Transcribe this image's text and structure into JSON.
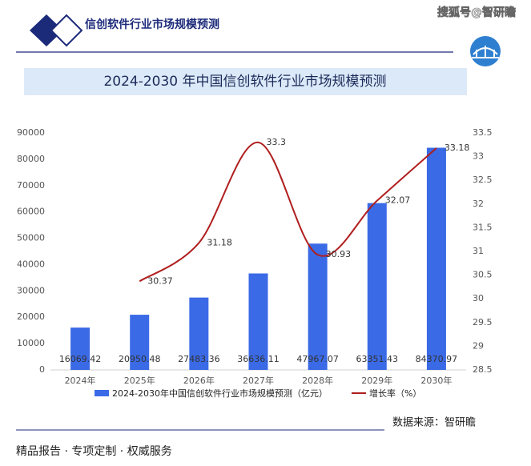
{
  "header": {
    "title": "信创软件行业市场规模预测",
    "watermark": "搜狐号@智研瞻"
  },
  "chart_data": {
    "type": "bar-line",
    "title": "2024-2030 年中国信创软件行业市场规模预测",
    "categories": [
      "2024年",
      "2025年",
      "2026年",
      "2027年",
      "2028年",
      "2029年",
      "2030年"
    ],
    "series": [
      {
        "name": "2024-2030年中国信创软件行业市场规模预测（亿元）",
        "color": "#3a6ae6",
        "type": "bar",
        "values": [
          16069.42,
          20950.48,
          27483.36,
          36636.11,
          47967.07,
          63351.43,
          84370.97
        ]
      },
      {
        "name": "增长率（%）",
        "color": "#b01e1e",
        "type": "line",
        "axis": "y2",
        "values": [
          null,
          30.37,
          31.18,
          33.3,
          30.93,
          32.07,
          33.18
        ]
      }
    ],
    "ylim": [
      0,
      90000
    ],
    "yticks": [
      0,
      10000,
      20000,
      30000,
      40000,
      50000,
      60000,
      70000,
      80000,
      90000
    ],
    "y2lim": [
      28.5,
      33.5
    ],
    "y2ticks": [
      28.5,
      29,
      29.5,
      30,
      30.5,
      31,
      31.5,
      32,
      32.5,
      33,
      33.5
    ],
    "grid": false,
    "legend": "bottom"
  },
  "footer": {
    "source": "数据来源：智研瞻",
    "tagline": "精品报告 · 专项定制 · 权威服务"
  }
}
